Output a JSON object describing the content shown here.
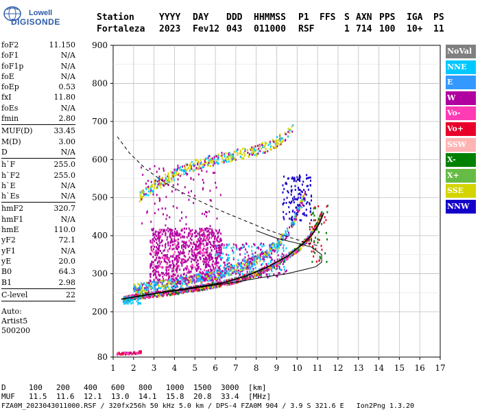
{
  "logo": {
    "line1": "Lowell",
    "line2": "DIGISONDE"
  },
  "header": {
    "row1": [
      "Station",
      "YYYY",
      "DAY",
      "DDD",
      "HHMMSS",
      "P1",
      "FFS",
      "S",
      "AXN",
      "PPS",
      "IGA",
      "PS"
    ],
    "row2": [
      "Fortaleza",
      "2023",
      "Fev12",
      "043",
      "011000",
      "RSF",
      "1",
      "714",
      "100",
      "10+",
      "11"
    ]
  },
  "params": {
    "group1": [
      {
        "label": "foF2",
        "value": "11.150"
      },
      {
        "label": "foF1",
        "value": "N/A"
      },
      {
        "label": "foF1p",
        "value": "N/A"
      },
      {
        "label": "foE",
        "value": "N/A"
      },
      {
        "label": "foEp",
        "value": "0.53"
      },
      {
        "label": "fxI",
        "value": "11.80"
      },
      {
        "label": "foEs",
        "value": "N/A"
      },
      {
        "label": "fmin",
        "value": "2.80"
      }
    ],
    "group2": [
      {
        "label": "MUF(D)",
        "value": "33.45"
      },
      {
        "label": "M(D)",
        "value": "3.00"
      },
      {
        "label": "D",
        "value": "N/A"
      }
    ],
    "group3": [
      {
        "label": "h`F",
        "value": "255.0"
      },
      {
        "label": "h`F2",
        "value": "255.0"
      },
      {
        "label": "h`E",
        "value": "N/A"
      },
      {
        "label": "h`Es",
        "value": "N/A"
      }
    ],
    "group4": [
      {
        "label": "hmF2",
        "value": "320.7"
      },
      {
        "label": "hmF1",
        "value": "N/A"
      },
      {
        "label": "hmE",
        "value": "110.0"
      },
      {
        "label": "yF2",
        "value": "72.1"
      },
      {
        "label": "yF1",
        "value": "N/A"
      },
      {
        "label": "yE",
        "value": "20.0"
      },
      {
        "label": "B0",
        "value": "64.3"
      },
      {
        "label": "B1",
        "value": "2.98"
      }
    ],
    "group5": [
      {
        "label": "C-level",
        "value": "22"
      }
    ],
    "notes": [
      "Auto:",
      "Artist5",
      "500200"
    ]
  },
  "legend": [
    {
      "label": "NoVal",
      "color": "#808080"
    },
    {
      "label": "NNE",
      "color": "#00c8ff"
    },
    {
      "label": "E",
      "color": "#3399ff"
    },
    {
      "label": "W",
      "color": "#b000a0"
    },
    {
      "label": "Vo-",
      "color": "#ff3cb4"
    },
    {
      "label": "Vo+",
      "color": "#e8002a"
    },
    {
      "label": "SSW",
      "color": "#ffb4b4"
    },
    {
      "label": "X-",
      "color": "#008000"
    },
    {
      "label": "X+",
      "color": "#66bb44"
    },
    {
      "label": "SSE",
      "color": "#d4d400"
    },
    {
      "label": "NNW",
      "color": "#1400c8"
    }
  ],
  "footer": {
    "d_label": "D",
    "d_values": [
      "100",
      "200",
      "400",
      "600",
      "800",
      "1000",
      "1500",
      "3000",
      "[km]"
    ],
    "muf_label": "MUF",
    "muf_values": [
      "11.5",
      "11.6",
      "12.1",
      "13.0",
      "14.1",
      "15.8",
      "20.8",
      "33.4",
      "[MHz]"
    ],
    "file_line": "FZA0M_2023043011000.RSF / 320fx256h 50 kHz 5.0 km / DPS-4 FZA0M 904 / 3.9 S 321.6 E   Ion2Png 1.3.20"
  },
  "chart_data": {
    "type": "scatter",
    "xlabel": "",
    "ylabel": "",
    "xlim": [
      1,
      17
    ],
    "x_ticks": [
      1,
      2,
      3,
      4,
      5,
      6,
      7,
      8,
      9,
      10,
      11,
      12,
      13,
      14,
      15,
      16,
      17
    ],
    "y_ticks": [
      80,
      200,
      300,
      400,
      500,
      600,
      700,
      800,
      900
    ],
    "y_scale": "piecewise (80-200 compressed, 200-900 linear)",
    "grid": true,
    "legend_position": "right",
    "profile_curve": [
      [
        1.4,
        233
      ],
      [
        2.5,
        243
      ],
      [
        3.5,
        252
      ],
      [
        4.5,
        260
      ],
      [
        5.5,
        268
      ],
      [
        6.5,
        278
      ],
      [
        7.5,
        294
      ],
      [
        8.5,
        316
      ],
      [
        9.5,
        345
      ],
      [
        10.2,
        375
      ],
      [
        10.7,
        400
      ],
      [
        11.1,
        433
      ],
      [
        11.3,
        460
      ]
    ],
    "profile_outline": [
      [
        1.4,
        233
      ],
      [
        3,
        247
      ],
      [
        5,
        262
      ],
      [
        7,
        278
      ],
      [
        8.5,
        292
      ],
      [
        9.5,
        300
      ],
      [
        10.3,
        310
      ],
      [
        10.9,
        318
      ],
      [
        11.2,
        330
      ],
      [
        11.2,
        350
      ],
      [
        10.7,
        370
      ],
      [
        10,
        380
      ],
      [
        9,
        393
      ],
      [
        8,
        413
      ]
    ],
    "dashed_curve": [
      [
        1.2,
        660
      ],
      [
        1.8,
        617
      ],
      [
        2.6,
        575
      ],
      [
        3.5,
        540
      ],
      [
        4.5,
        510
      ],
      [
        5.5,
        484
      ],
      [
        6.5,
        460
      ],
      [
        7.5,
        438
      ],
      [
        8.5,
        416
      ],
      [
        9.5,
        398
      ],
      [
        10.5,
        381
      ],
      [
        11.1,
        372
      ]
    ],
    "trace_ordinary": [
      [
        1.5,
        232
      ],
      [
        2,
        238
      ],
      [
        3,
        245
      ],
      [
        4,
        252
      ],
      [
        5,
        260
      ],
      [
        6,
        270
      ],
      [
        7,
        282
      ],
      [
        8,
        300
      ],
      [
        9,
        325
      ],
      [
        10,
        362
      ],
      [
        10.6,
        395
      ],
      [
        11,
        430
      ],
      [
        11.2,
        458
      ]
    ],
    "trace_extraordinary": [
      [
        2,
        260
      ],
      [
        3,
        267
      ],
      [
        4,
        275
      ],
      [
        5,
        285
      ],
      [
        6,
        297
      ],
      [
        7,
        312
      ],
      [
        8,
        336
      ],
      [
        9,
        374
      ],
      [
        9.7,
        420
      ],
      [
        10,
        460
      ],
      [
        10.4,
        505
      ]
    ],
    "trace_sse_multi": [
      [
        2.3,
        500
      ],
      [
        3,
        530
      ],
      [
        4,
        560
      ],
      [
        5,
        585
      ],
      [
        6,
        600
      ],
      [
        7,
        612
      ],
      [
        8,
        622
      ],
      [
        9,
        645
      ],
      [
        9.8,
        680
      ]
    ],
    "trace_es_low": [
      [
        1.2,
        88
      ],
      [
        1.5,
        89
      ],
      [
        2,
        90
      ],
      [
        2.4,
        93
      ]
    ]
  }
}
